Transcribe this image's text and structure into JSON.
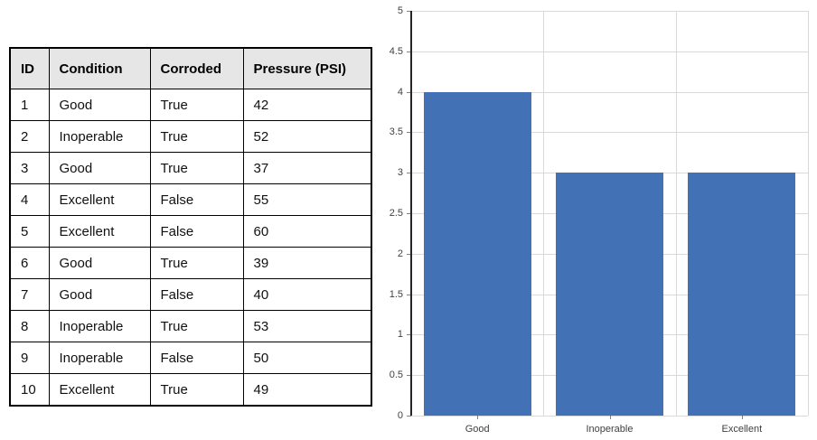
{
  "table": {
    "columns": [
      "ID",
      "Condition",
      "Corroded",
      "Pressure (PSI)"
    ],
    "rows": [
      [
        "1",
        "Good",
        "True",
        "42"
      ],
      [
        "2",
        "Inoperable",
        "True",
        "52"
      ],
      [
        "3",
        "Good",
        "True",
        "37"
      ],
      [
        "4",
        "Excellent",
        "False",
        "55"
      ],
      [
        "5",
        "Excellent",
        "False",
        "60"
      ],
      [
        "6",
        "Good",
        "True",
        "39"
      ],
      [
        "7",
        "Good",
        "False",
        "40"
      ],
      [
        "8",
        "Inoperable",
        "True",
        "53"
      ],
      [
        "9",
        "Inoperable",
        "False",
        "50"
      ],
      [
        "10",
        "Excellent",
        "True",
        "49"
      ]
    ],
    "header_bg": "#E7E6E6",
    "border_color": "#000000"
  },
  "chart_data": {
    "type": "bar",
    "title": "",
    "categories": [
      "Good",
      "Inoperable",
      "Excellent"
    ],
    "values": [
      4,
      3,
      3
    ],
    "xlabel": "",
    "ylabel": "",
    "ylim": [
      0,
      5
    ],
    "y_ticks": [
      0,
      0.5,
      1,
      1.5,
      2,
      2.5,
      3,
      3.5,
      4,
      4.5,
      5
    ],
    "grid": true,
    "legend_position": "none",
    "bar_color": "#4272B5",
    "gridline_color": "#D9D9D9",
    "axis_color": "#262626",
    "tick_label_color": "#404040"
  }
}
